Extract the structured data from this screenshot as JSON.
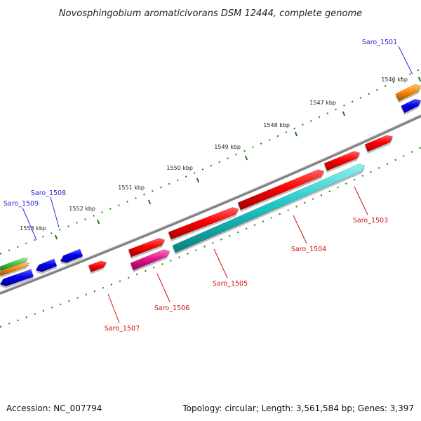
{
  "title": "Novosphingobium aromaticivorans DSM 12444, complete genome",
  "footer": {
    "accession": "Accession: NC_007794",
    "topology": "Topology: circular; Length: 3,561,584 bp; Genes: 3,397"
  },
  "scale_labels": [
    "1546 kbp",
    "1547 kbp",
    "1548 kbp",
    "1549 kbp",
    "1550 kbp",
    "1551 kbp",
    "1552 kbp",
    "1553 kbp"
  ],
  "gene_labels": {
    "saro_1501": "Saro_1501",
    "saro_1503": "Saro_1503",
    "saro_1504": "Saro_1504",
    "saro_1505": "Saro_1505",
    "saro_1506": "Saro_1506",
    "saro_1507": "Saro_1507",
    "saro_1508": "Saro_1508",
    "saro_1509": "Saro_1509"
  },
  "colors": {
    "backbone": "#808080",
    "tick": "#1e7a1e",
    "red": "#ff0000",
    "cyan": "#1ec8c8",
    "magenta": "#e6148c",
    "blue": "#0000ee",
    "orange": "#ff8c00",
    "green": "#3cc83c"
  }
}
